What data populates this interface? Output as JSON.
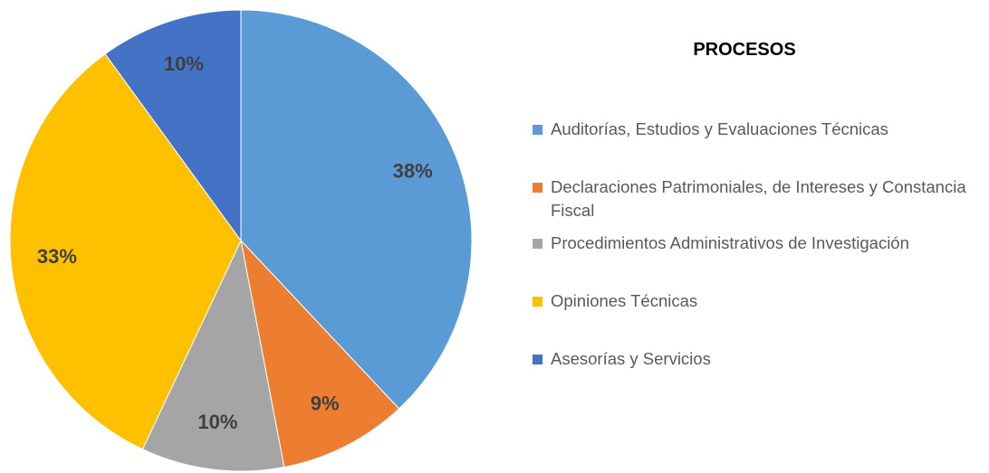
{
  "chart_data": {
    "type": "pie",
    "title": "PROCESOS",
    "categories": [
      "Auditorías, Estudios y Evaluaciones Técnicas",
      "Declaraciones Patrimoniales, de Intereses y Constancia Fiscal",
      "Procedimientos Administrativos de Investigación",
      "Opiniones Técnicas",
      "Asesorías y Servicios"
    ],
    "values": [
      38,
      9,
      10,
      33,
      10
    ],
    "value_labels": [
      "38%",
      "9%",
      "10%",
      "33%",
      "10%"
    ],
    "colors": [
      "#5b9bd5",
      "#ed7d31",
      "#a5a5a5",
      "#ffc000",
      "#4472c4"
    ],
    "legend": "right"
  }
}
